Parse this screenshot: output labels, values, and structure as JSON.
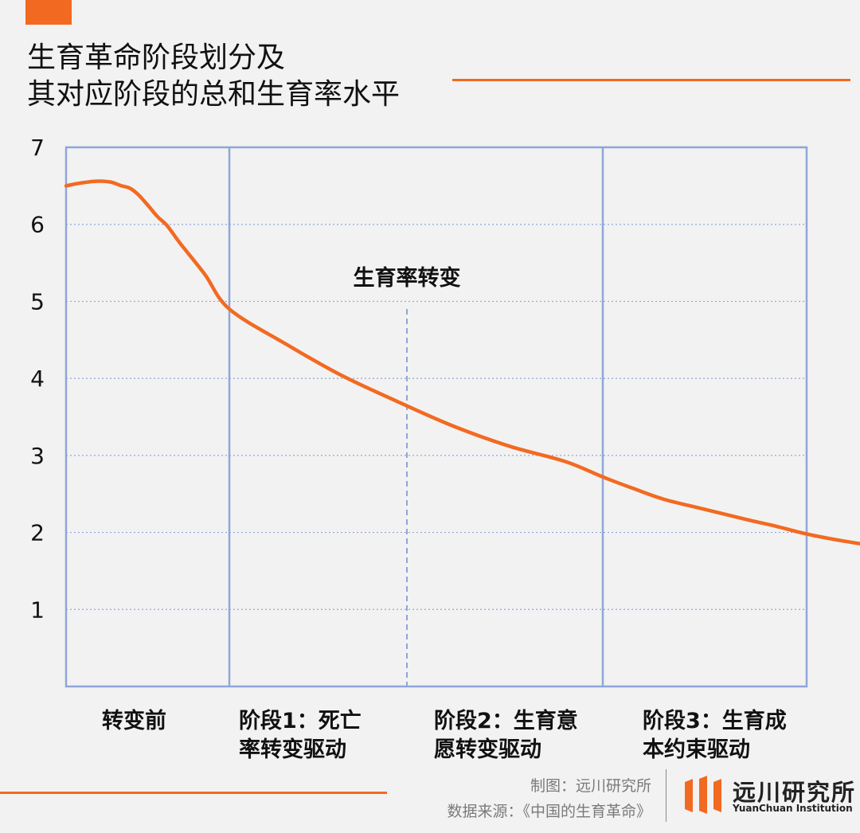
{
  "header": {
    "title_line1": "生育革命阶段划分及",
    "title_line2": "其对应阶段的总和生育率水平"
  },
  "colors": {
    "accent": "#f26a21",
    "frame": "#8fa6da",
    "grid": "#8fa6da",
    "text": "#111111"
  },
  "chart_data": {
    "type": "line",
    "title": "",
    "ylim": [
      0,
      7
    ],
    "yticks": [
      "1",
      "2",
      "3",
      "4",
      "5",
      "6",
      "7"
    ],
    "grid": "horizontal dotted",
    "stages": [
      {
        "label_line1": "转变前",
        "label_line2": ""
      },
      {
        "label_line1": "阶段1：死亡",
        "label_line2": "率转变驱动"
      },
      {
        "label_line1": "阶段2：生育意",
        "label_line2": "愿转变驱动"
      },
      {
        "label_line1": "阶段3：生育成",
        "label_line2": "本约束驱动"
      }
    ],
    "annotation": "生育率转变",
    "series": [
      {
        "color": "#f26a21",
        "points": [
          [
            0.0,
            6.5
          ],
          [
            0.07,
            6.53
          ],
          [
            0.18,
            6.56
          ],
          [
            0.27,
            6.55
          ],
          [
            0.34,
            6.5
          ],
          [
            0.39,
            6.47
          ],
          [
            0.44,
            6.39
          ],
          [
            0.5,
            6.25
          ],
          [
            0.56,
            6.1
          ],
          [
            0.62,
            5.98
          ],
          [
            0.7,
            5.75
          ],
          [
            0.85,
            5.35
          ],
          [
            1.0,
            4.9
          ],
          [
            1.15,
            4.45
          ],
          [
            1.3,
            4.04
          ],
          [
            1.45,
            3.7
          ],
          [
            1.6,
            3.38
          ],
          [
            1.75,
            3.12
          ],
          [
            1.9,
            2.92
          ],
          [
            2.0,
            2.72
          ],
          [
            2.15,
            2.57
          ],
          [
            2.3,
            2.43
          ],
          [
            2.5,
            2.3
          ],
          [
            2.7,
            2.17
          ],
          [
            2.85,
            2.08
          ],
          [
            3.0,
            1.98
          ],
          [
            3.2,
            1.88
          ],
          [
            3.4,
            1.8
          ],
          [
            3.6,
            1.71
          ],
          [
            3.8,
            1.58
          ],
          [
            3.95,
            1.48
          ],
          [
            4.0,
            1.45
          ]
        ]
      }
    ]
  },
  "footer": {
    "made_by": "制图：远川研究所",
    "source": "数据来源：《中国的生育革命》",
    "logo_cn": "远川研究所",
    "logo_en": "YuanChuan Institution"
  }
}
